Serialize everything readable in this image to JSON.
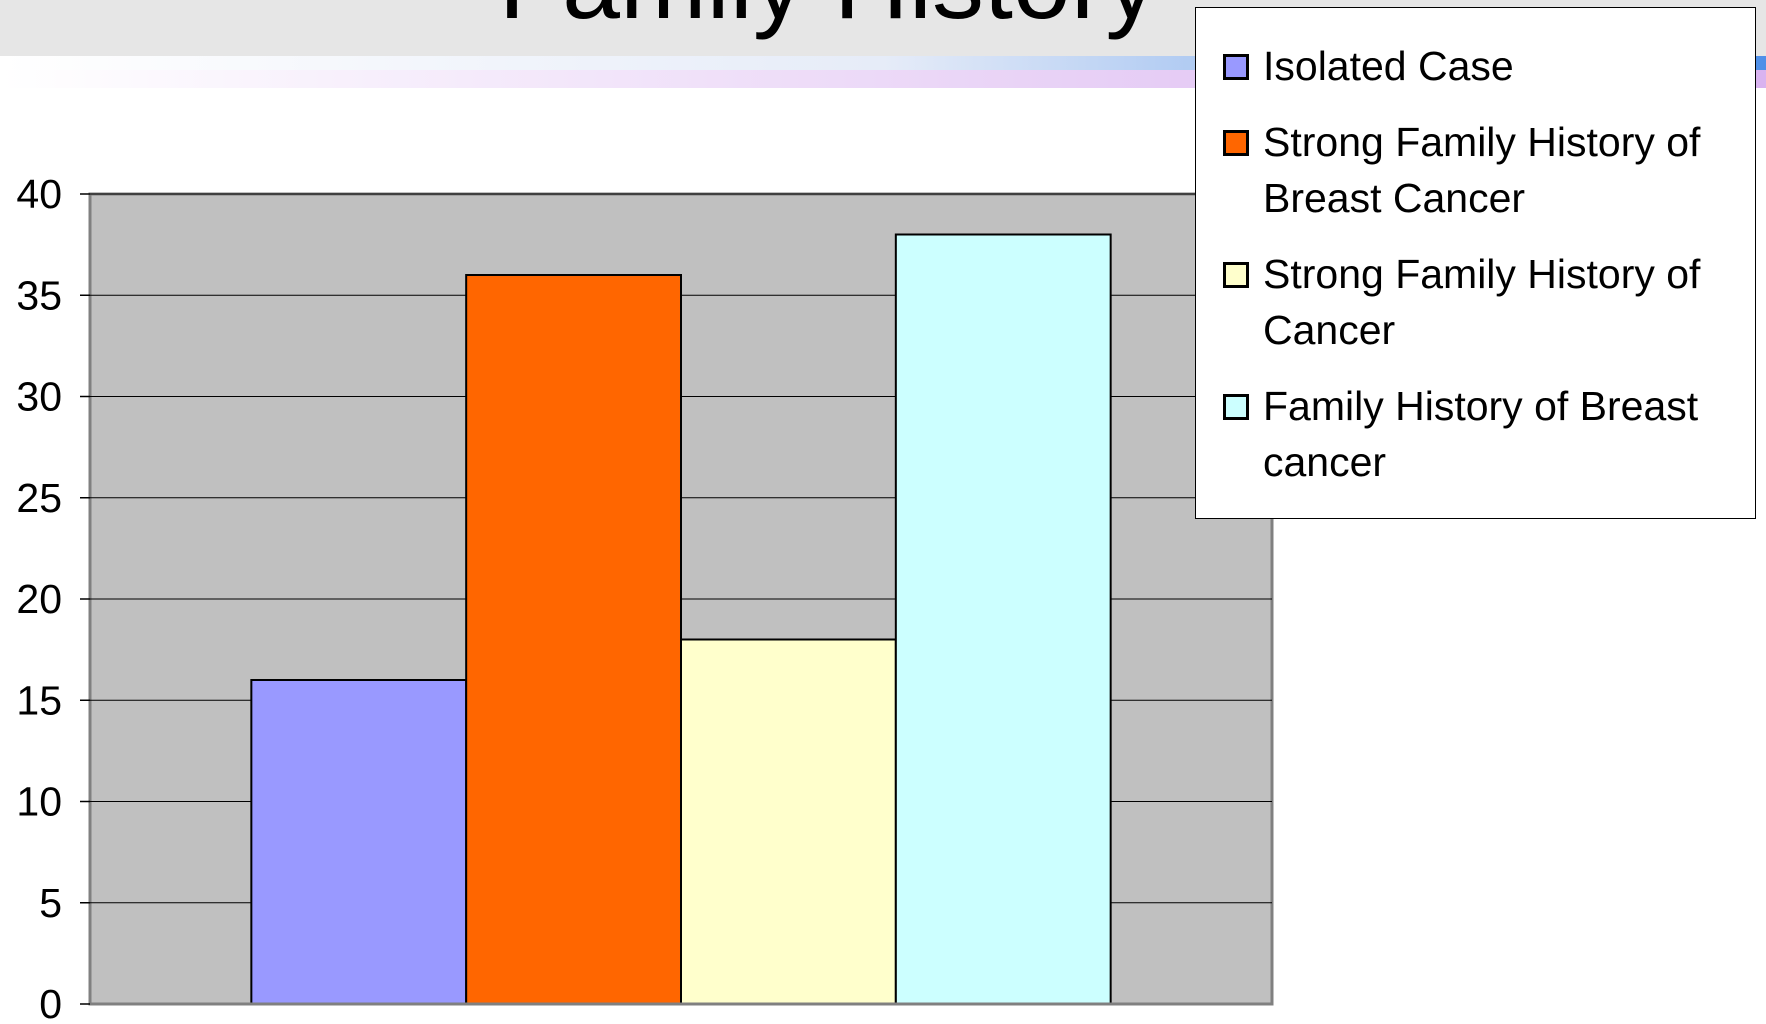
{
  "chart_data": {
    "type": "bar",
    "title": "Family History",
    "categories": [
      null
    ],
    "series": [
      {
        "name": "Isolated Case",
        "color": "#9999ff",
        "values": [
          16
        ]
      },
      {
        "name": "Strong Family History of Breast Cancer",
        "color": "#ff6600",
        "values": [
          36
        ]
      },
      {
        "name": "Strong Family History of Cancer",
        "color": "#ffffcc",
        "values": [
          18
        ]
      },
      {
        "name": "Family History of Breast cancer",
        "color": "#ccffff",
        "values": [
          38
        ]
      }
    ],
    "ylim": [
      0,
      40
    ],
    "yticks": [
      0,
      5,
      10,
      15,
      20,
      25,
      30,
      35,
      40
    ],
    "grid": true,
    "legend": "right"
  }
}
